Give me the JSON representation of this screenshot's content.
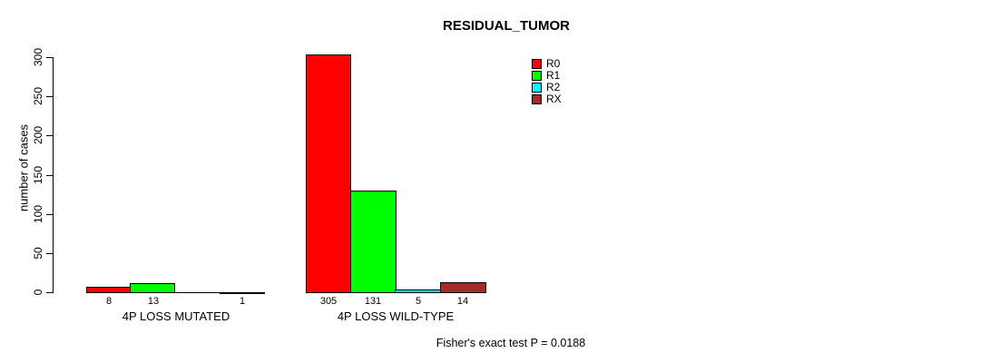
{
  "chart_data": {
    "type": "bar",
    "title": "RESIDUAL_TUMOR",
    "ylabel": "number of cases",
    "ylim": [
      0,
      300
    ],
    "yticks": [
      0,
      50,
      100,
      150,
      200,
      250,
      300
    ],
    "grid": false,
    "legend_position": "top-right",
    "categories": [
      "4P LOSS MUTATED",
      "4P LOSS WILD-TYPE"
    ],
    "series": [
      {
        "name": "R0",
        "color": "#FF0000",
        "values": [
          8,
          305
        ]
      },
      {
        "name": "R1",
        "color": "#00FF00",
        "values": [
          13,
          131
        ]
      },
      {
        "name": "R2",
        "color": "#00FFFF",
        "values": [
          0,
          5
        ]
      },
      {
        "name": "RX",
        "color": "#A52A2A",
        "values": [
          1,
          14
        ]
      }
    ],
    "bar_labels": [
      [
        "8",
        "13",
        "",
        "1"
      ],
      [
        "305",
        "131",
        "5",
        "14"
      ]
    ],
    "footer": "Fisher's exact test P = 0.0188"
  }
}
